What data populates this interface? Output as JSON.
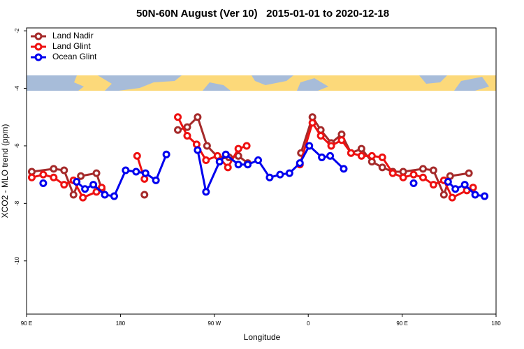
{
  "chart_data": {
    "type": "line",
    "title": "50N-60N August (Ver 10)   2015-01-01 to 2020-12-18",
    "x_label": "Longitude",
    "y_label": "XCO2 - MLO trend (ppm)",
    "xlim": [
      90,
      540
    ],
    "xticks": [
      {
        "value": 90,
        "label": "90 E"
      },
      180,
      {
        "value": 270,
        "label": "90 W"
      },
      {
        "value": 360,
        "label": "0"
      },
      {
        "value": 450,
        "label": "90 E"
      },
      {
        "value": 540,
        "label": "180"
      }
    ],
    "ylim": [
      -11.85,
      -1.9
    ],
    "yticks": [
      -2,
      -4,
      -6,
      -8,
      -10
    ],
    "legend": "top-left",
    "series": [
      {
        "name": "Land Nadir",
        "color": "#a52a2a",
        "x": [
          95,
          116,
          126,
          135,
          142,
          157,
          162,
          null,
          203,
          null,
          235,
          244,
          254,
          263,
          275,
          284,
          293,
          302,
          null,
          353,
          364,
          372,
          382,
          392,
          401,
          411,
          421,
          431,
          441,
          451,
          470,
          480,
          490,
          496,
          514
        ],
        "values": [
          -6.9,
          -6.8,
          -6.85,
          -7.7,
          -7.05,
          -6.95,
          -7.5,
          null,
          -7.7,
          null,
          -5.45,
          -5.35,
          -5.0,
          -6.0,
          -6.45,
          -6.4,
          -6.35,
          -6.6,
          null,
          -6.25,
          -5.0,
          -5.45,
          -5.9,
          -5.6,
          -6.25,
          -6.1,
          -6.55,
          -6.75,
          -6.9,
          -6.9,
          -6.8,
          -6.85,
          -7.7,
          -7.05,
          -6.95
        ]
      },
      {
        "name": "Land Glint",
        "color": "#ee1111",
        "x": [
          95,
          106,
          116,
          126,
          135,
          144,
          157,
          162,
          null,
          196,
          203,
          null,
          235,
          244,
          253,
          262,
          273,
          283,
          293,
          301,
          null,
          352,
          364,
          372,
          382,
          392,
          401,
          411,
          421,
          431,
          441,
          451,
          461,
          470,
          480,
          490,
          498,
          512,
          518
        ],
        "values": [
          -7.1,
          -7.0,
          -7.1,
          -7.35,
          -7.2,
          -7.8,
          -7.6,
          -7.45,
          null,
          -6.35,
          -7.15,
          null,
          -5.0,
          -5.65,
          -5.95,
          -6.5,
          -6.35,
          -6.75,
          -6.1,
          -6.0,
          null,
          -6.65,
          -5.2,
          -5.65,
          -6.0,
          -5.8,
          -6.25,
          -6.35,
          -6.35,
          -6.4,
          -6.95,
          -7.1,
          -7.0,
          -7.1,
          -7.35,
          -7.2,
          -7.8,
          -7.55,
          -7.45
        ]
      },
      {
        "name": "Ocean Glint",
        "color": "#0000ee",
        "x": [
          106,
          null,
          138,
          146,
          154,
          165,
          174,
          185,
          195,
          204,
          214,
          224,
          null,
          254,
          262,
          275,
          281,
          293,
          302,
          312,
          323,
          333,
          342,
          352,
          361,
          373,
          381,
          394,
          null,
          461,
          null,
          494,
          501,
          510,
          520,
          529
        ],
        "values": [
          -7.3,
          null,
          -7.25,
          -7.5,
          -7.35,
          -7.7,
          -7.75,
          -6.85,
          -6.9,
          -6.95,
          -7.2,
          -6.3,
          null,
          -6.15,
          -7.6,
          -6.55,
          -6.3,
          -6.65,
          -6.65,
          -6.5,
          -7.1,
          -7.0,
          -6.95,
          -6.6,
          -6.0,
          -6.4,
          -6.35,
          -6.8,
          null,
          -7.3,
          null,
          -7.25,
          -7.5,
          -7.35,
          -7.7,
          -7.75
        ]
      }
    ]
  }
}
